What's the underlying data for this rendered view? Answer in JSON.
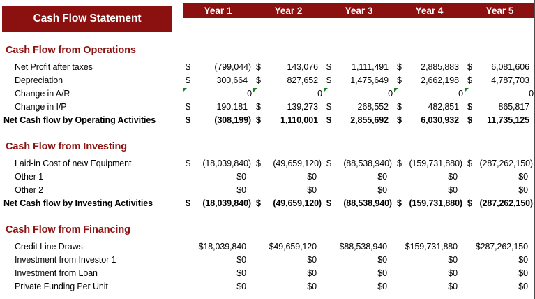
{
  "title": "Cash Flow Statement",
  "currency_symbol": "$",
  "columns": [
    "Year 1",
    "Year 2",
    "Year 3",
    "Year 4",
    "Year 5"
  ],
  "colors": {
    "banner_red": "#8B1010",
    "section_title_red": "#8B1412",
    "error_flag_green": "#1E7E28",
    "gridline_gray": "#4d4d4d",
    "text": "#000000"
  },
  "sections": [
    {
      "header": "Cash Flow from Operations",
      "rows": [
        {
          "label": "Net Profit after taxes",
          "style": "accounting",
          "bold": false,
          "values": [
            "(799,044)",
            "143,076",
            "1,111,491",
            "2,885,883",
            "6,081,606"
          ]
        },
        {
          "label": "Depreciation",
          "style": "accounting",
          "bold": false,
          "values": [
            "300,664",
            "827,652",
            "1,475,649",
            "2,662,198",
            "4,787,703"
          ]
        },
        {
          "label": "Change in A/R",
          "style": "zero-flag",
          "bold": false,
          "values": [
            "0",
            "0",
            "0",
            "0",
            "0"
          ]
        },
        {
          "label": "Change in I/P",
          "style": "accounting",
          "bold": false,
          "values": [
            "190,181",
            "139,273",
            "268,552",
            "482,851",
            "865,817"
          ]
        },
        {
          "label": "Net Cash flow by Operating Activities",
          "style": "accounting",
          "bold": true,
          "values": [
            "(308,199)",
            "1,110,001",
            "2,855,692",
            "6,030,932",
            "11,735,125"
          ]
        }
      ]
    },
    {
      "header": "Cash Flow from Investing",
      "rows": [
        {
          "label": "Laid-in Cost of new Equipment",
          "style": "accounting",
          "bold": false,
          "values": [
            "(18,039,840)",
            "(49,659,120)",
            "(88,538,940)",
            "(159,731,880)",
            "(287,262,150)"
          ]
        },
        {
          "label": "Other 1",
          "style": "plain",
          "bold": false,
          "values": [
            "$0",
            "$0",
            "$0",
            "$0",
            "$0"
          ]
        },
        {
          "label": "Other 2",
          "style": "plain",
          "bold": false,
          "values": [
            "$0",
            "$0",
            "$0",
            "$0",
            "$0"
          ]
        },
        {
          "label": "Net Cash flow by Investing Activities",
          "style": "accounting",
          "bold": true,
          "values": [
            "(18,039,840)",
            "(49,659,120)",
            "(88,538,940)",
            "(159,731,880)",
            "(287,262,150)"
          ]
        }
      ]
    },
    {
      "header": "Cash Flow from Financing",
      "rows": [
        {
          "label": "Credit Line Draws",
          "style": "plain",
          "bold": false,
          "values": [
            "$18,039,840",
            "$49,659,120",
            "$88,538,940",
            "$159,731,880",
            "$287,262,150"
          ]
        },
        {
          "label": "Investment from Investor 1",
          "style": "plain",
          "bold": false,
          "values": [
            "$0",
            "$0",
            "$0",
            "$0",
            "$0"
          ]
        },
        {
          "label": "Investment from Loan",
          "style": "plain",
          "bold": false,
          "values": [
            "$0",
            "$0",
            "$0",
            "$0",
            "$0"
          ]
        },
        {
          "label": "Private Funding Per Unit",
          "style": "plain",
          "bold": false,
          "values": [
            "$0",
            "$0",
            "$0",
            "$0",
            "$0"
          ]
        }
      ]
    }
  ]
}
